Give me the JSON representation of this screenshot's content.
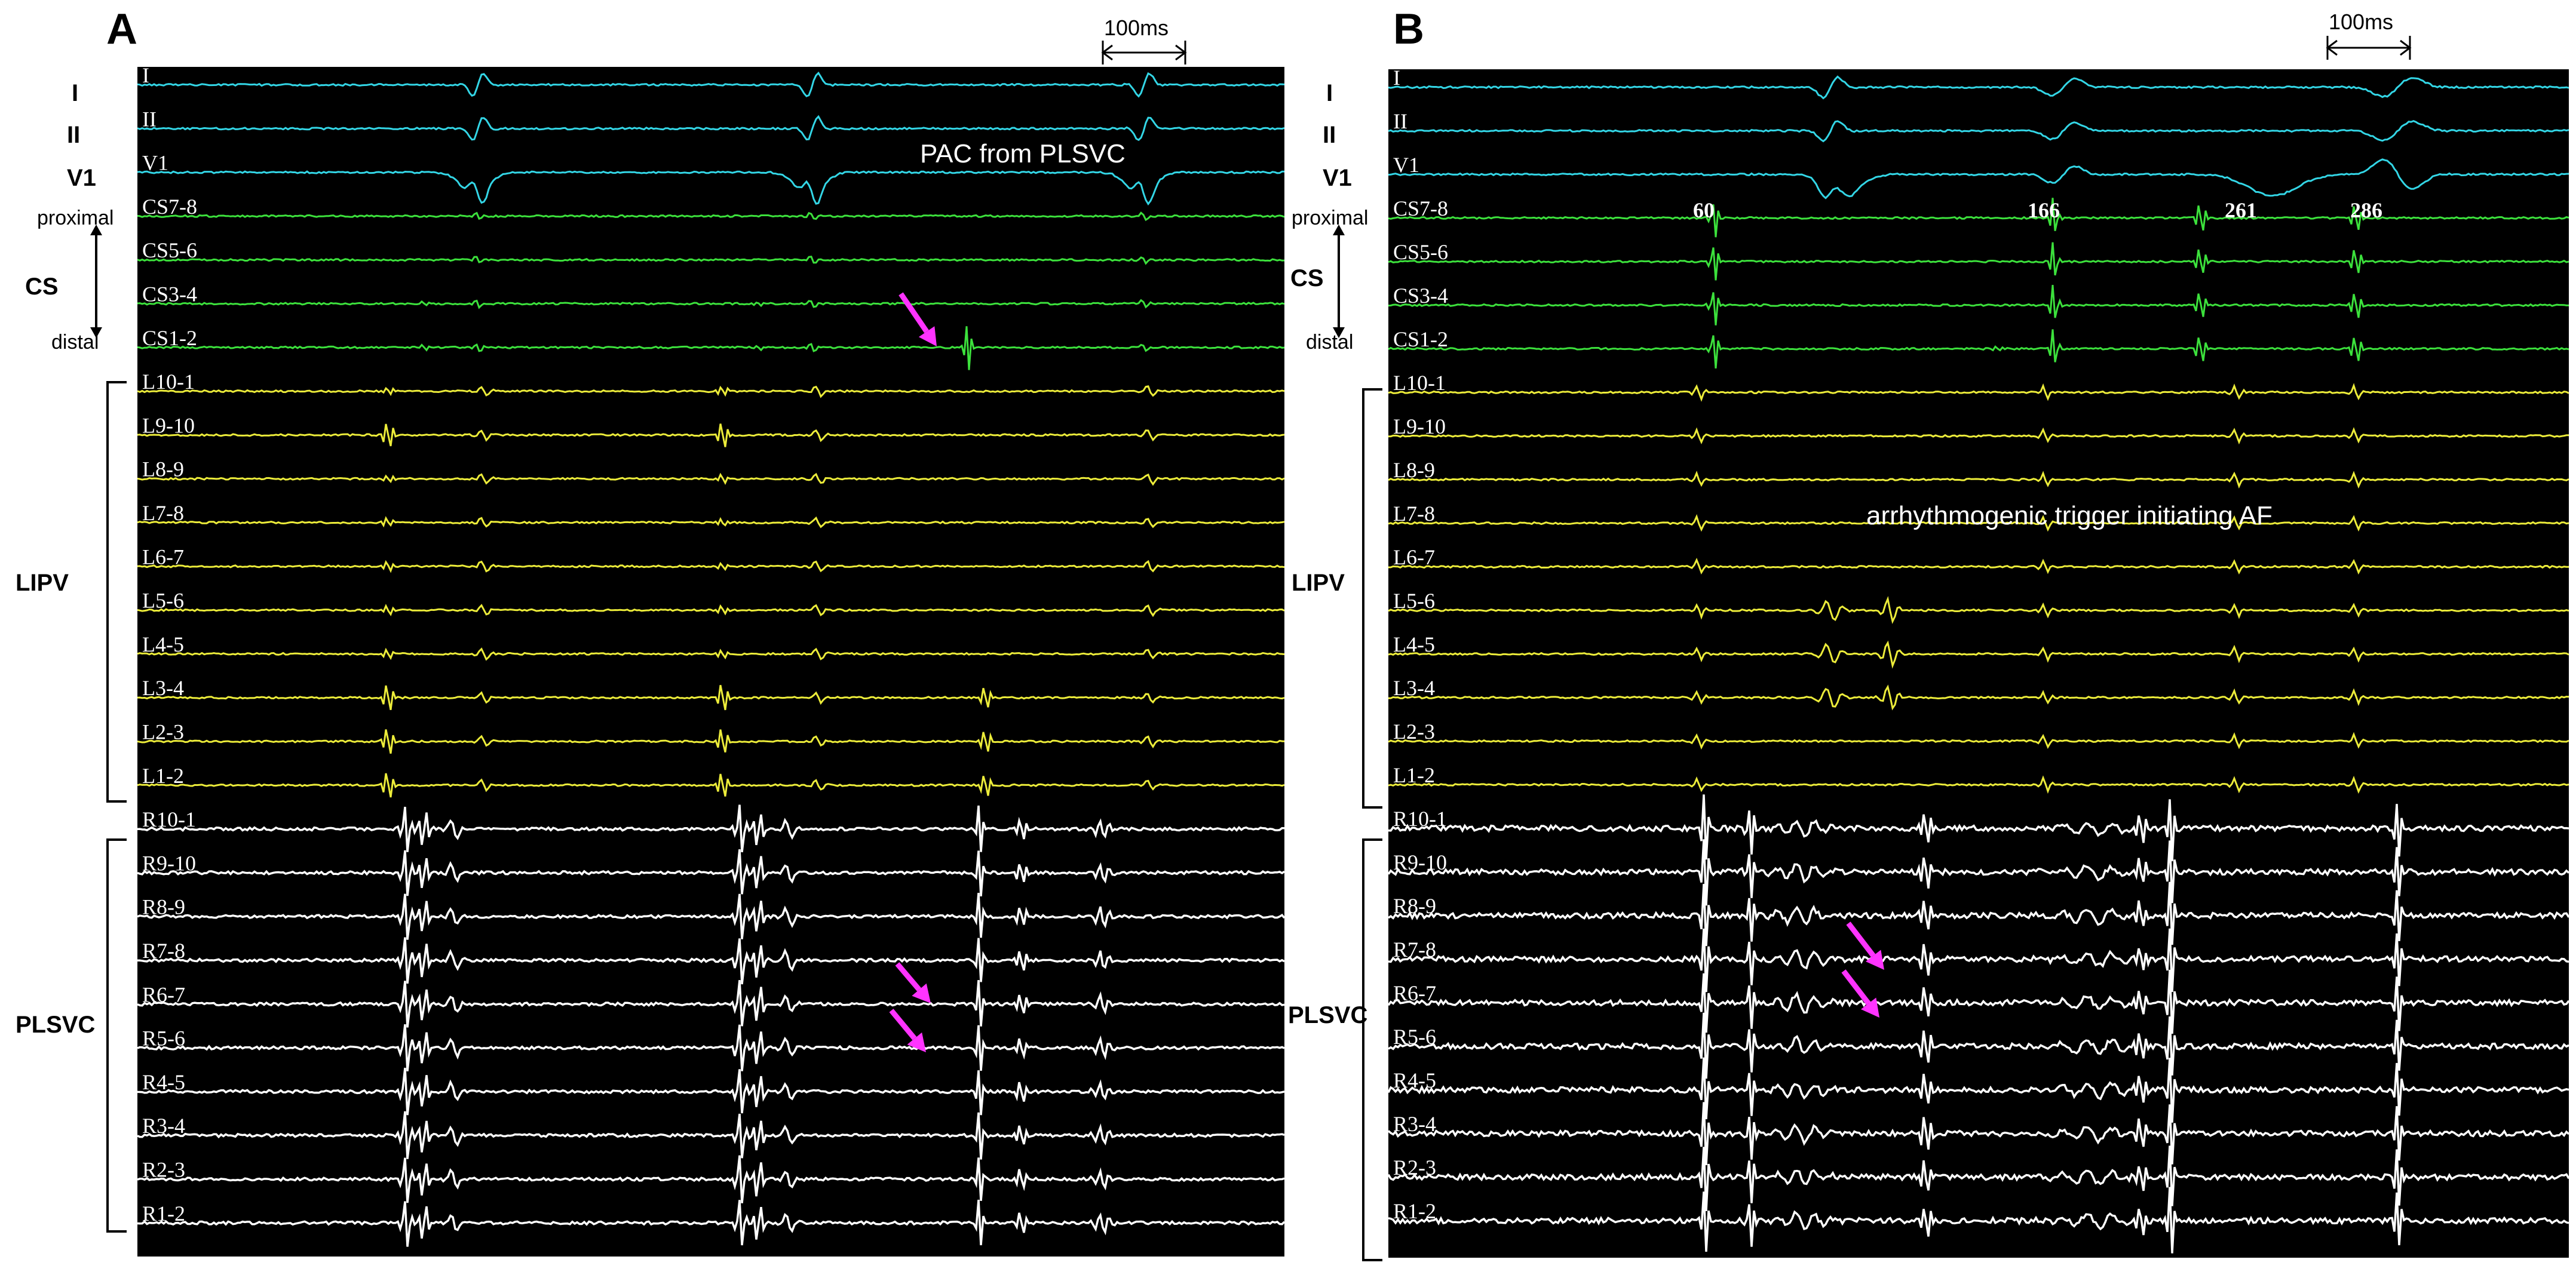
{
  "panels": [
    {
      "letter": "A",
      "scale_label": "100ms",
      "annotation": "PAC from PLSVC",
      "cs_values": [],
      "groups": {
        "surface": [
          "I",
          "II",
          "V1"
        ],
        "cs_label": "CS",
        "cs_proximal": "proximal",
        "cs_distal": "distal",
        "lipv_label": "LIPV",
        "plsvc_label": "PLSVC"
      },
      "channels": [
        "I",
        "II",
        "V1",
        "CS7-8",
        "CS5-6",
        "CS3-4",
        "CS1-2",
        "L10-1",
        "L9-10",
        "L8-9",
        "L7-8",
        "L6-7",
        "L5-6",
        "L4-5",
        "L3-4",
        "L2-3",
        "L1-2",
        "R10-1",
        "R9-10",
        "R8-9",
        "R7-8",
        "R6-7",
        "R5-6",
        "R4-5",
        "R3-4",
        "R2-3",
        "R1-2"
      ]
    },
    {
      "letter": "B",
      "scale_label": "100ms",
      "annotation": "arrhythmogenic trigger initiating AF",
      "cs_values": [
        "60",
        "166",
        "261",
        "286"
      ],
      "groups": {
        "surface": [
          "I",
          "II",
          "V1"
        ],
        "cs_label": "CS",
        "cs_proximal": "proximal",
        "cs_distal": "distal",
        "lipv_label": "LIPV",
        "plsvc_label": "PLSVC"
      },
      "channels": [
        "I",
        "II",
        "V1",
        "CS7-8",
        "CS5-6",
        "CS3-4",
        "CS1-2",
        "L10-1",
        "L9-10",
        "L8-9",
        "L7-8",
        "L6-7",
        "L5-6",
        "L4-5",
        "L3-4",
        "L2-3",
        "L1-2",
        "R10-1",
        "R9-10",
        "R8-9",
        "R7-8",
        "R6-7",
        "R5-6",
        "R4-5",
        "R3-4",
        "R2-3",
        "R1-2"
      ]
    }
  ],
  "colors": {
    "surface": "#33d6e6",
    "cs": "#3ce13c",
    "lipv": "#ecec3a",
    "plsvc": "#ffffff",
    "arrow": "#ff33ff",
    "background": "#000000"
  }
}
